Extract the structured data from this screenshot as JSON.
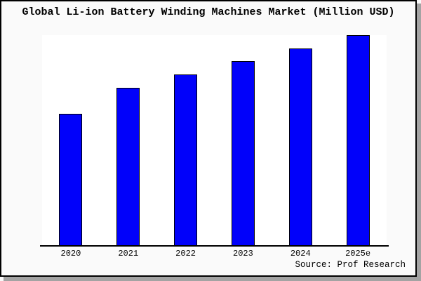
{
  "window": {
    "background": "#FAFAFA",
    "frame_border_color": "#000000",
    "shadow_color": "#A3A3A3"
  },
  "header": {
    "title": "Global Li-ion Battery Winding Machines Market (Million USD)"
  },
  "footer": {
    "source": "Source: Prof Research"
  },
  "chart_data": {
    "type": "bar",
    "title": "Global Li-ion Battery Winding Machines Market (Million USD)",
    "categories": [
      "2020",
      "2021",
      "2022",
      "2023",
      "2024",
      "2025e"
    ],
    "values": [
      189,
      226,
      245,
      264,
      282,
      301
    ],
    "units_note": "chart shows no y-axis tick labels; values are relative bar heights",
    "xlabel": "",
    "ylabel": "",
    "ylim": [
      0,
      301
    ],
    "grid": false,
    "legend": false,
    "bar_color": "#0101FA",
    "bar_border_color": "#000000",
    "plot_background": "#FFFFFF",
    "axis_color": "#000000",
    "source": "Source: Prof Research"
  }
}
